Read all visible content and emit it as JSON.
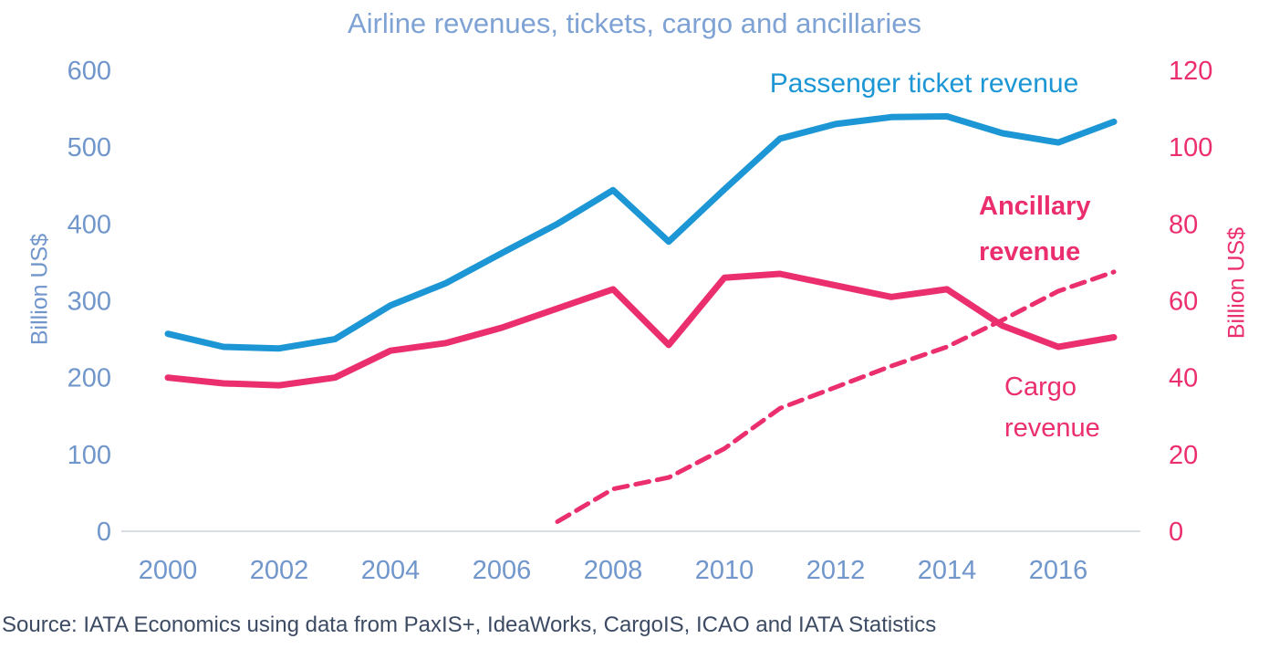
{
  "title": "Airline revenues, tickets, cargo and ancillaries",
  "source": "Source: IATA Economics using data from PaxIS+, IdeaWorks, CargoIS, ICAO and IATA Statistics",
  "annotations": {
    "passenger": "Passenger ticket revenue",
    "ancillary": "Ancillary\nrevenue",
    "cargo": "Cargo\nrevenue"
  },
  "colors": {
    "blue_line": "#1C96D4",
    "pink_line": "#EB2F6E",
    "axis_tick_text": "#7096CB",
    "right_axis_tick_text": "#EB2F6E",
    "title_text": "#7EA2D4",
    "source_text": "#3C4B63",
    "baseline": "#D9DDE6"
  },
  "chart_data": {
    "type": "line",
    "title": "Airline revenues, tickets, cargo and ancillaries",
    "x": [
      2000,
      2001,
      2002,
      2003,
      2004,
      2005,
      2006,
      2007,
      2008,
      2009,
      2010,
      2011,
      2012,
      2013,
      2014,
      2015,
      2016,
      2017
    ],
    "series": [
      {
        "name": "Passenger ticket revenue",
        "axis": "left",
        "line_style": "solid",
        "color": "#1C96D4",
        "values": [
          257,
          240,
          238,
          250,
          294,
          323,
          362,
          400,
          444,
          377,
          445,
          511,
          530,
          539,
          540,
          518,
          506,
          533
        ]
      },
      {
        "name": "Cargo revenue",
        "axis": "right",
        "line_style": "solid",
        "color": "#EB2F6E",
        "values": [
          40,
          38.5,
          38,
          40,
          47,
          49,
          53,
          58,
          63,
          48.5,
          66,
          67,
          64,
          61,
          63,
          53.5,
          48,
          50.5
        ]
      },
      {
        "name": "Ancillary revenue",
        "axis": "right",
        "line_style": "dashed",
        "color": "#EB2F6E",
        "values": [
          null,
          null,
          null,
          null,
          null,
          null,
          null,
          2.5,
          11,
          14,
          21.5,
          32,
          37.5,
          43,
          48,
          55,
          62.5,
          67.5
        ]
      }
    ],
    "left_axis": {
      "label": "Billion US$",
      "ticks": [
        0,
        100,
        200,
        300,
        400,
        500,
        600
      ],
      "lim": [
        0,
        600
      ]
    },
    "right_axis": {
      "label": "Billion US$",
      "ticks": [
        0,
        20,
        40,
        60,
        80,
        100,
        120
      ],
      "lim": [
        0,
        120
      ]
    },
    "x_axis": {
      "ticks": [
        2000,
        2002,
        2004,
        2006,
        2008,
        2010,
        2012,
        2014,
        2016
      ],
      "lim": [
        2000,
        2017
      ]
    },
    "grid": false,
    "legend": "inline-labels"
  }
}
